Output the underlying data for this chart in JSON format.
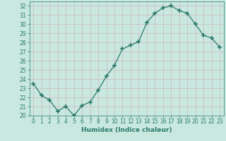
{
  "x": [
    0,
    1,
    2,
    3,
    4,
    5,
    6,
    7,
    8,
    9,
    10,
    11,
    12,
    13,
    14,
    15,
    16,
    17,
    18,
    19,
    20,
    21,
    22,
    23
  ],
  "y": [
    23.5,
    22.2,
    21.7,
    20.5,
    21.0,
    20.0,
    21.1,
    21.5,
    22.8,
    24.3,
    25.5,
    27.3,
    27.7,
    28.1,
    30.2,
    31.2,
    31.8,
    32.0,
    31.5,
    31.2,
    30.0,
    28.8,
    28.5,
    27.5
  ],
  "line_color": "#2d7a6a",
  "marker": "+",
  "marker_size": 4,
  "bg_color": "#c8e8e0",
  "grid_color": "#b0d0c8",
  "xlabel": "Humidex (Indice chaleur)",
  "ylim": [
    20,
    32.5
  ],
  "xlim": [
    -0.5,
    23.5
  ],
  "yticks": [
    20,
    21,
    22,
    23,
    24,
    25,
    26,
    27,
    28,
    29,
    30,
    31,
    32
  ],
  "xticks": [
    0,
    1,
    2,
    3,
    4,
    5,
    6,
    7,
    8,
    9,
    10,
    11,
    12,
    13,
    14,
    15,
    16,
    17,
    18,
    19,
    20,
    21,
    22,
    23
  ],
  "tick_fontsize": 5.5,
  "xlabel_fontsize": 6.5
}
